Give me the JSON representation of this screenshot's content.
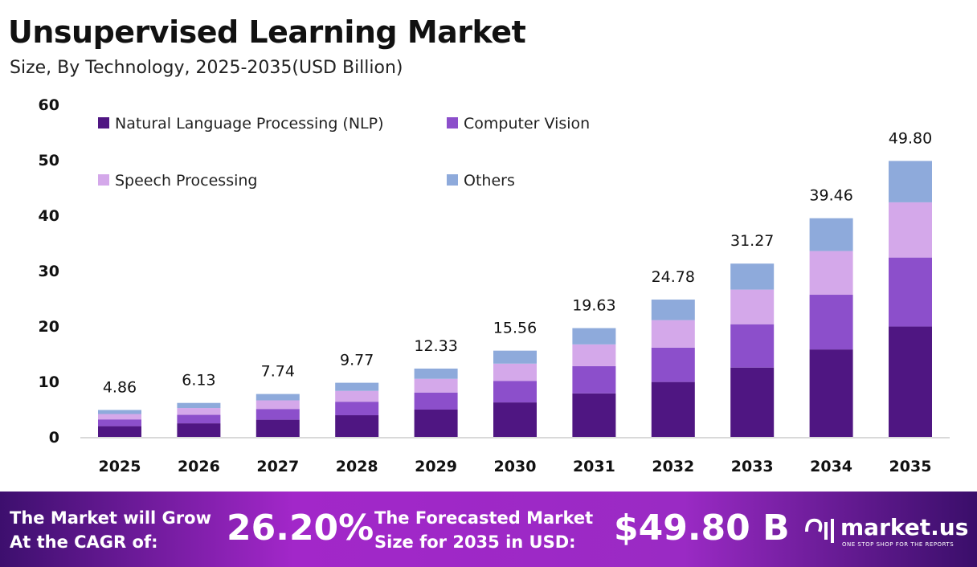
{
  "title": "Unsupervised Learning Market",
  "subtitle": "Size, By Technology, 2025-2035(USD Billion)",
  "chart_data": {
    "type": "bar",
    "stacked": true,
    "categories": [
      "2025",
      "2026",
      "2027",
      "2028",
      "2029",
      "2030",
      "2031",
      "2032",
      "2033",
      "2034",
      "2035"
    ],
    "series": [
      {
        "name": "Natural Language Processing (NLP)",
        "color": "#4f1682",
        "values": [
          1.94,
          2.45,
          3.1,
          3.91,
          4.93,
          6.22,
          7.85,
          9.91,
          12.51,
          15.78,
          19.92
        ]
      },
      {
        "name": "Computer Vision",
        "color": "#8c4fcb",
        "values": [
          1.22,
          1.53,
          1.94,
          2.44,
          3.08,
          3.89,
          4.91,
          6.2,
          7.82,
          9.87,
          12.45
        ]
      },
      {
        "name": "Speech Processing",
        "color": "#d4a8ea",
        "values": [
          0.97,
          1.23,
          1.55,
          1.95,
          2.47,
          3.11,
          3.93,
          4.96,
          6.25,
          7.89,
          9.96
        ]
      },
      {
        "name": "Others",
        "color": "#8eaadb",
        "values": [
          0.73,
          0.92,
          1.15,
          1.47,
          1.85,
          2.34,
          2.94,
          3.71,
          4.69,
          5.92,
          7.47
        ]
      }
    ],
    "totals": [
      "4.86",
      "6.13",
      "7.74",
      "9.77",
      "12.33",
      "15.56",
      "19.63",
      "24.78",
      "31.27",
      "39.46",
      "49.80"
    ],
    "yticks": [
      "0",
      "10",
      "20",
      "30",
      "40",
      "50",
      "60"
    ],
    "ylim": [
      0,
      60
    ],
    "grid": false,
    "legend_position": "top-left"
  },
  "footer": {
    "cagr_label_1": "The Market will Grow",
    "cagr_label_2": "At the CAGR of:",
    "cagr_value": "26.20%",
    "forecast_label_1": "The Forecasted Market",
    "forecast_label_2": "Size for 2035 in USD:",
    "forecast_value": "$49.80 B",
    "brand": "market.us",
    "tagline": "ONE STOP SHOP FOR THE REPORTS"
  }
}
